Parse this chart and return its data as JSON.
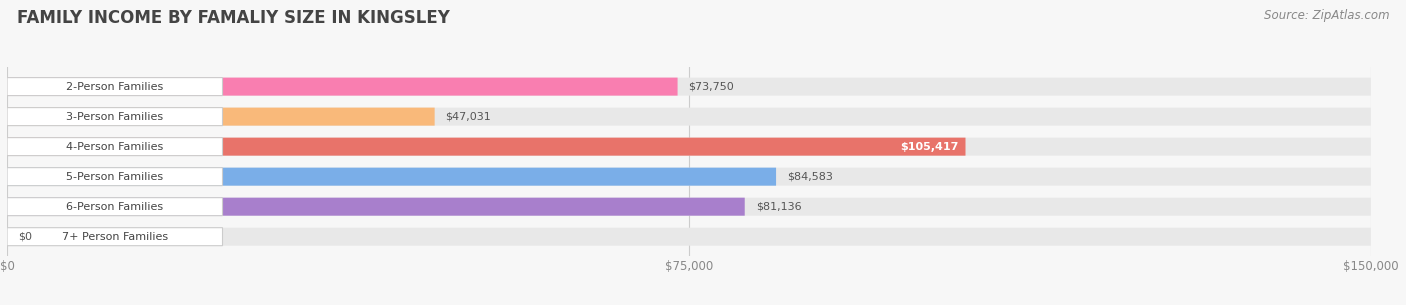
{
  "title": "FAMILY INCOME BY FAMALIY SIZE IN KINGSLEY",
  "source": "Source: ZipAtlas.com",
  "categories": [
    "2-Person Families",
    "3-Person Families",
    "4-Person Families",
    "5-Person Families",
    "6-Person Families",
    "7+ Person Families"
  ],
  "values": [
    73750,
    47031,
    105417,
    84583,
    81136,
    0
  ],
  "bar_colors": [
    "#F97EB0",
    "#F9B97A",
    "#E8736A",
    "#7AAEE8",
    "#A87FCC",
    "#7DD4CC"
  ],
  "value_labels": [
    "$73,750",
    "$47,031",
    "$105,417",
    "$84,583",
    "$81,136",
    "$0"
  ],
  "xmax": 150000,
  "xticks": [
    0,
    75000,
    150000
  ],
  "xtick_labels": [
    "$0",
    "$75,000",
    "$150,000"
  ],
  "background_color": "#f7f7f7",
  "bar_bg_color": "#e8e8e8",
  "title_fontsize": 12,
  "source_fontsize": 8.5,
  "label_fontsize": 8,
  "value_fontsize": 8
}
